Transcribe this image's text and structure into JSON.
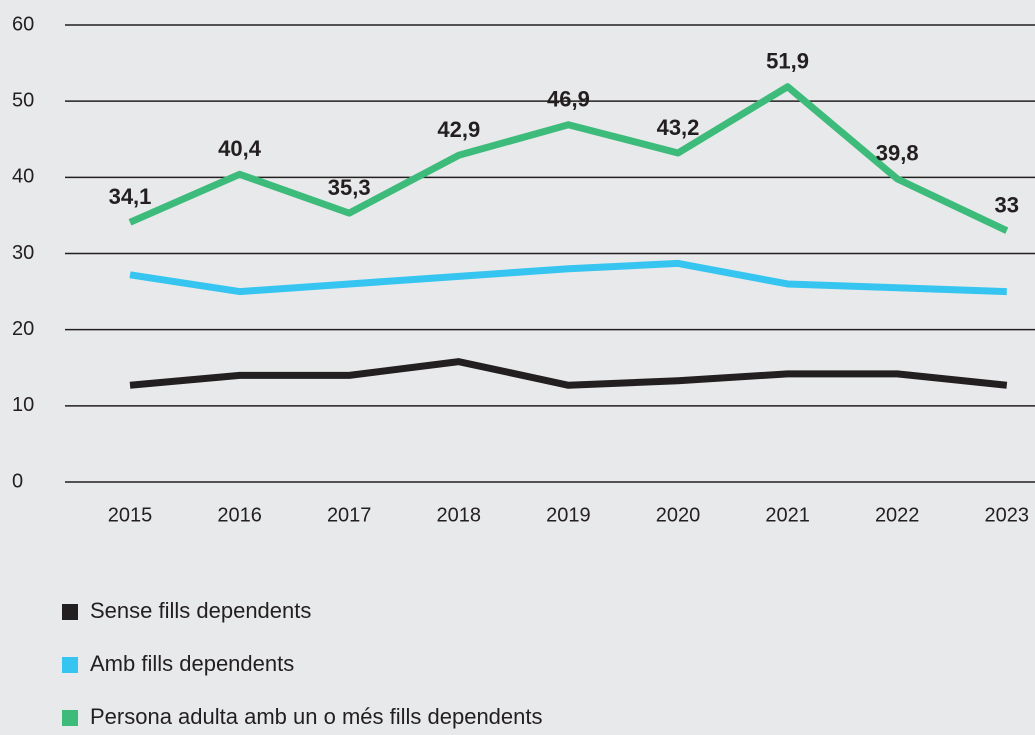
{
  "chart_data": {
    "type": "line",
    "categories": [
      "2015",
      "2016",
      "2017",
      "2018",
      "2019",
      "2020",
      "2021",
      "2022",
      "2023"
    ],
    "series": [
      {
        "name": "Sense fills dependents",
        "color": "#231f20",
        "values": [
          12.7,
          14,
          14,
          15.8,
          12.7,
          13.3,
          14.2,
          14.2,
          12.7
        ]
      },
      {
        "name": "Amb fills dependents",
        "color": "#36c5f0",
        "values": [
          27.2,
          25,
          26,
          27,
          28,
          28.7,
          26,
          25.5,
          25
        ]
      },
      {
        "name": "Persona adulta amb un o més fills dependents",
        "color": "#3dbb7a",
        "values": [
          34.1,
          40.4,
          35.3,
          42.9,
          46.9,
          43.2,
          51.9,
          39.8,
          33
        ],
        "value_labels": [
          "34,1",
          "40,4",
          "35,3",
          "42,9",
          "46,9",
          "43,2",
          "51,9",
          "39,8",
          "33"
        ]
      }
    ],
    "ylim": [
      0,
      60
    ],
    "yticks": [
      0,
      10,
      20,
      30,
      40,
      50,
      60
    ],
    "grid": true,
    "legend": "bottom"
  }
}
